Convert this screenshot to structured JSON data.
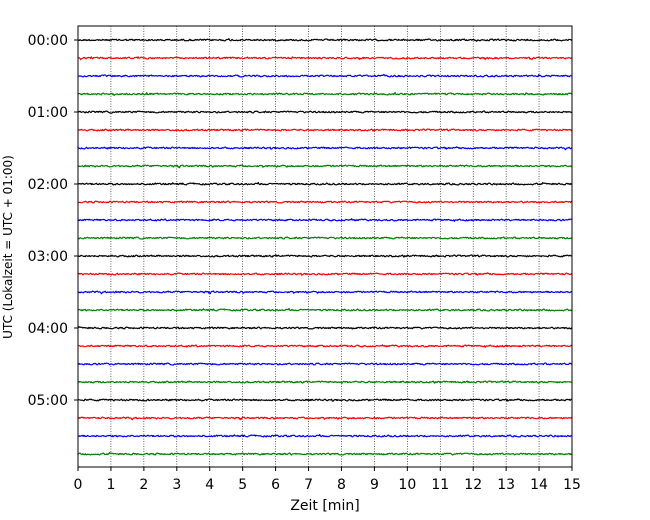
{
  "chart_data": {
    "type": "line",
    "title": "",
    "xlabel": "Zeit  [min]",
    "ylabel": "UTC (Lokalzeit = UTC + 01:00)",
    "xlim": [
      0,
      15
    ],
    "x_ticks": [
      "0",
      "1",
      "2",
      "3",
      "4",
      "5",
      "6",
      "7",
      "8",
      "9",
      "10",
      "11",
      "12",
      "13",
      "14",
      "15"
    ],
    "y_tick_labels": [
      "00:00",
      "01:00",
      "02:00",
      "03:00",
      "04:00",
      "05:00"
    ],
    "trace_interval_min": 15,
    "trace_count": 24,
    "trace_colors": [
      "#000000",
      "#ff0000",
      "#0000ff",
      "#008000"
    ],
    "vertical_grid": "dotted",
    "legend": "none"
  }
}
